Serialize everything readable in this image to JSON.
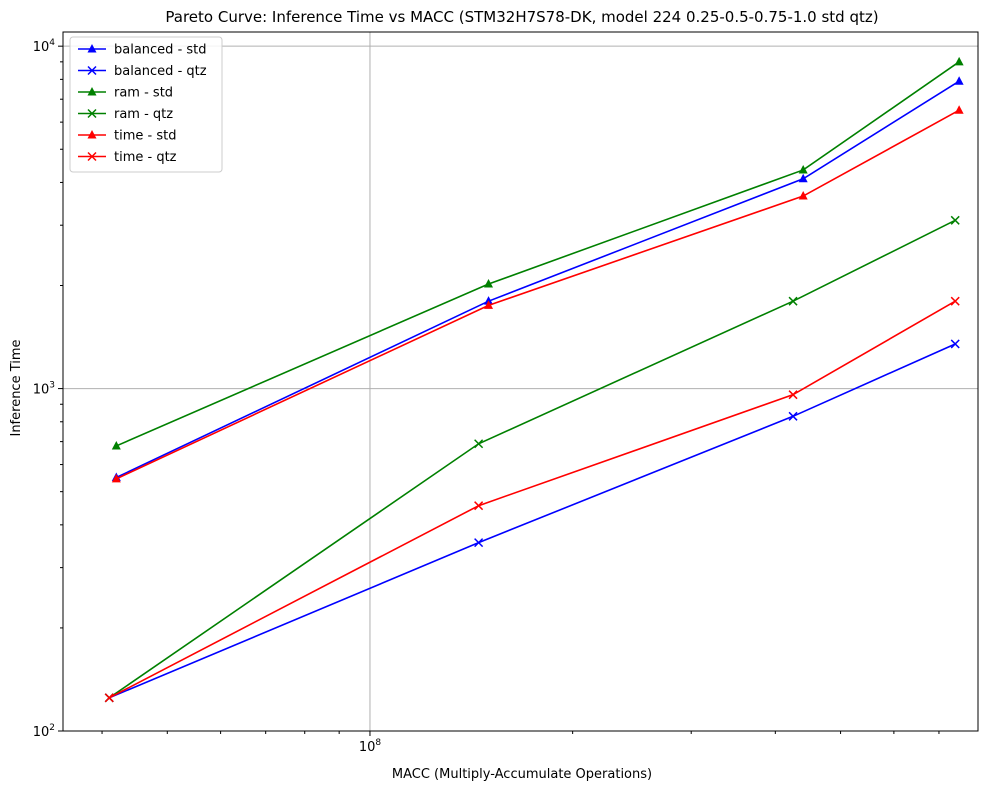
{
  "chart_data": {
    "type": "line",
    "title": "Pareto Curve: Inference Time vs MACC (STM32H7S78-DK, model 224 0.25-0.5-0.75-1.0 std qtz)",
    "xlabel": "MACC (Multiply-Accumulate Operations)",
    "ylabel": "Inference Time",
    "x_scale": "log",
    "y_scale": "log",
    "xlim": [
      35000000,
      800000000
    ],
    "ylim": [
      100,
      11000
    ],
    "x_ticks": [
      {
        "value": 100000000,
        "base": "10",
        "exp": "8"
      }
    ],
    "y_ticks": [
      {
        "value": 100,
        "base": "10",
        "exp": "2"
      },
      {
        "value": 1000,
        "base": "10",
        "exp": "3"
      },
      {
        "value": 10000,
        "base": "10",
        "exp": "4"
      }
    ],
    "grid": true,
    "legend_position": "top-left",
    "series": [
      {
        "name": "balanced - std",
        "color": "#0000ff",
        "marker": "triangle",
        "x": [
          42000000,
          150000000,
          440000000,
          750000000
        ],
        "y": [
          550,
          1800,
          4100,
          7900
        ]
      },
      {
        "name": "balanced - qtz",
        "color": "#0000ff",
        "marker": "x",
        "x": [
          41000000,
          145000000,
          425000000,
          740000000
        ],
        "y": [
          125,
          355,
          830,
          1350
        ]
      },
      {
        "name": "ram - std",
        "color": "#008000",
        "marker": "triangle",
        "x": [
          42000000,
          150000000,
          440000000,
          750000000
        ],
        "y": [
          680,
          2020,
          4350,
          9000
        ]
      },
      {
        "name": "ram - qtz",
        "color": "#008000",
        "marker": "x",
        "x": [
          41000000,
          145000000,
          425000000,
          740000000
        ],
        "y": [
          125,
          690,
          1800,
          3100
        ]
      },
      {
        "name": "time - std",
        "color": "#ff0000",
        "marker": "triangle",
        "x": [
          42000000,
          150000000,
          440000000,
          750000000
        ],
        "y": [
          545,
          1750,
          3650,
          6500
        ]
      },
      {
        "name": "time - qtz",
        "color": "#ff0000",
        "marker": "x",
        "x": [
          41000000,
          145000000,
          425000000,
          740000000
        ],
        "y": [
          125,
          455,
          960,
          1800
        ]
      }
    ]
  }
}
